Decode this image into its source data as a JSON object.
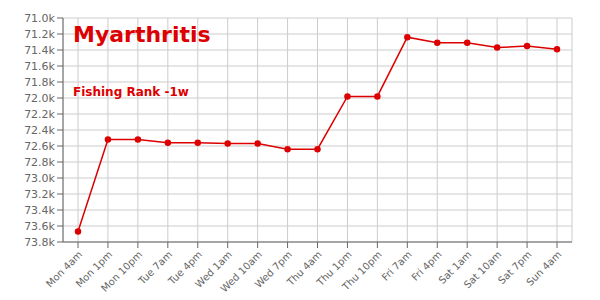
{
  "chart_data": {
    "type": "line",
    "title": "Myarthritis",
    "subtitle": "Fishing Rank -1w",
    "categories": [
      "Mon 4am",
      "Mon 1pm",
      "Mon 10pm",
      "Tue 7am",
      "Tue 4pm",
      "Wed 1am",
      "Wed 10am",
      "Wed 7pm",
      "Thu 4am",
      "Thu 1pm",
      "Thu 10pm",
      "Fri 7am",
      "Fri 4pm",
      "Sat 1am",
      "Sat 10am",
      "Sat 7pm",
      "Sun 4am"
    ],
    "values": [
      73670,
      72520,
      72520,
      72560,
      72560,
      72570,
      72570,
      72640,
      72640,
      71980,
      71980,
      71240,
      71310,
      71310,
      71370,
      71350,
      71390
    ],
    "color": "#dd0000",
    "marker": "circle",
    "ylim": [
      73800,
      71000
    ],
    "yticks": [
      {
        "value": 71000,
        "label": "71.0k"
      },
      {
        "value": 71200,
        "label": "71.2k"
      },
      {
        "value": 71400,
        "label": "71.4k"
      },
      {
        "value": 71600,
        "label": "71.6k"
      },
      {
        "value": 71800,
        "label": "71.8k"
      },
      {
        "value": 72000,
        "label": "72.0k"
      },
      {
        "value": 72200,
        "label": "72.2k"
      },
      {
        "value": 72400,
        "label": "72.4k"
      },
      {
        "value": 72600,
        "label": "72.6k"
      },
      {
        "value": 72800,
        "label": "72.8k"
      },
      {
        "value": 73000,
        "label": "73.0k"
      },
      {
        "value": 73200,
        "label": "73.2k"
      },
      {
        "value": 73400,
        "label": "73.4k"
      },
      {
        "value": 73600,
        "label": "73.6k"
      },
      {
        "value": 73800,
        "label": "73.8k"
      }
    ],
    "grid": true
  }
}
